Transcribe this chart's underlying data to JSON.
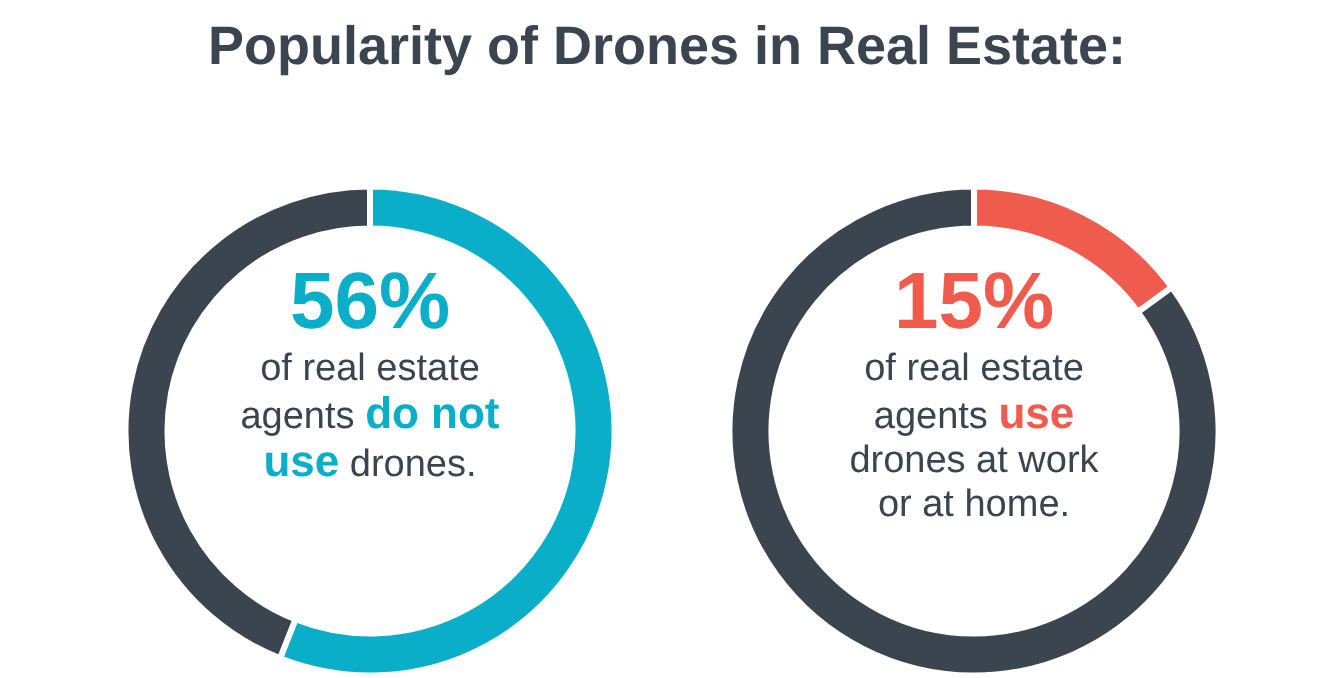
{
  "chart_data": [
    {
      "type": "donut",
      "title": "Popularity of Drones in Real Estate:",
      "categories": [
        null,
        null
      ],
      "values": [
        56,
        44
      ],
      "colors": [
        "#0aaec9",
        "#3b4550"
      ],
      "value_labels": [
        "56%",
        null
      ],
      "annotations": [
        "of real estate agents ",
        "do not use",
        " drones."
      ]
    },
    {
      "type": "donut",
      "categories": [
        null,
        null
      ],
      "values": [
        15,
        85
      ],
      "colors": [
        "#ef5b4c",
        "#3b4550"
      ],
      "value_labels": [
        "15%",
        null
      ],
      "annotations": [
        "of real estate agents ",
        "use",
        " drones at work or at home."
      ]
    }
  ]
}
